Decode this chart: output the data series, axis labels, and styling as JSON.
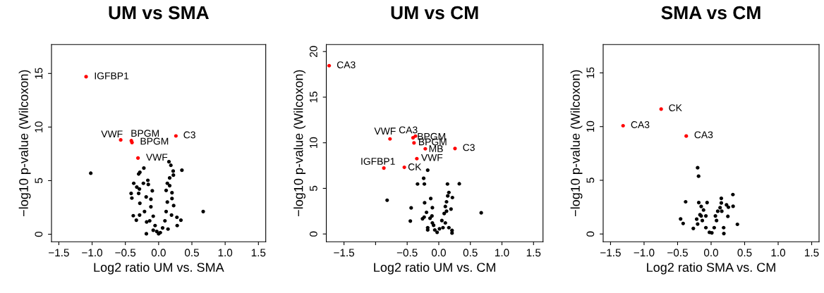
{
  "chart_data": [
    {
      "type": "scatter",
      "title": "UM vs SMA",
      "xlabel": "Log2 ratio UM vs. SMA",
      "ylabel": "−log10 p-value (Wilcoxon)",
      "xlim": [
        -1.61,
        1.61
      ],
      "ylim": [
        -0.7,
        17.7
      ],
      "xticks": [
        {
          "value": -1.5,
          "label": "−1.5"
        },
        {
          "value": -1.0,
          "label": "−1.0"
        },
        {
          "value": -0.5,
          "label": "−0.5"
        },
        {
          "value": 0.0,
          "label": "0.0"
        },
        {
          "value": 0.5,
          "label": "0.5"
        },
        {
          "value": 1.0,
          "label": "1.0"
        },
        {
          "value": 1.5,
          "label": "1.5"
        }
      ],
      "yticks": [
        0,
        5,
        10,
        15
      ],
      "marker": "circle",
      "grid": false,
      "legend": false,
      "series": [
        {
          "color": "#000000",
          "x": [
            -1.02,
            0.67,
            0.35,
            -0.222,
            -0.282,
            -0.3,
            -0.162,
            -0.374,
            -0.229,
            -0.155,
            -0.328,
            -0.289,
            -0.413,
            -0.402,
            -0.095,
            -0.3,
            -0.187,
            -0.282,
            -0.116,
            -0.212,
            -0.381,
            -0.286,
            -0.335,
            -0.18,
            -0.184,
            -0.116,
            -0.081,
            -0.053,
            -0.028,
            0.0,
            0.025,
            0.06,
            0.095,
            0.113,
            0.131,
            0.113,
            0.131,
            0.166,
            0.155,
            0.184,
            0.219,
            0.222,
            0.166,
            0.201,
            0.201,
            0.226,
            0.194,
            0.275,
            0.335,
            0.279,
            0.141,
            -0.081,
            -0.134
          ],
          "values": [
            5.69,
            2.12,
            5.97,
            6.17,
            5.78,
            5.62,
            5.03,
            4.75,
            4.75,
            4.64,
            4.4,
            4.22,
            3.81,
            3.37,
            4.05,
            3.81,
            3.48,
            2.89,
            3.26,
            2.12,
            1.73,
            1.79,
            1.31,
            1.14,
            0.04,
            2.56,
            1.68,
            0.81,
            0.26,
            0.04,
            0.15,
            0.59,
            1.25,
            2.12,
            3.0,
            4.09,
            4.75,
            4.53,
            6.76,
            6.43,
            5.89,
            5.51,
            5.25,
            3.87,
            3.33,
            2.67,
            1.79,
            1.58,
            1.31,
            0.81,
            0.48,
            0.37,
            1.25
          ]
        },
        {
          "color": "#ff0000",
          "x": [
            -1.09,
            -0.57,
            -0.41,
            -0.4,
            0.26,
            -0.31
          ],
          "values": [
            14.7,
            8.8,
            8.73,
            8.56,
            9.17,
            7.11
          ]
        }
      ],
      "annotations": [
        {
          "text": "IGFBP1",
          "x": -1.09,
          "y": 14.7
        },
        {
          "text": "VWF",
          "x": -0.57,
          "y": 8.8
        },
        {
          "text": "BPGM",
          "x": -0.41,
          "y": 8.73
        },
        {
          "text": "BPGM",
          "x": -0.4,
          "y": 8.56
        },
        {
          "text": "C3",
          "x": 0.26,
          "y": 9.17
        },
        {
          "text": "VWF",
          "x": -0.31,
          "y": 7.11
        }
      ]
    },
    {
      "type": "scatter",
      "title": "UM vs CM",
      "xlabel": "Log2 ratio UM vs. CM",
      "ylabel": "−log10 p-value (Wilcoxon)",
      "xlim": [
        -1.78,
        1.65
      ],
      "ylim": [
        -0.85,
        20.77
      ],
      "xticks": [
        {
          "value": -1.5,
          "label": "−1.5"
        },
        {
          "value": -1.0,
          "label": null
        },
        {
          "value": -0.5,
          "label": "−0.5"
        },
        {
          "value": 0.0,
          "label": "0.0"
        },
        {
          "value": 0.5,
          "label": "0.5"
        },
        {
          "value": 1.0,
          "label": "1.0"
        },
        {
          "value": 1.5,
          "label": "1.5"
        }
      ],
      "yticks": [
        0,
        5,
        10,
        15,
        20
      ],
      "marker": "circle",
      "grid": false,
      "legend": false,
      "series": [
        {
          "color": "#000000",
          "x": [
            -0.175,
            -0.239,
            -0.336,
            -0.228,
            0.138,
            0.325,
            -0.817,
            0.672,
            -0.437,
            -0.127,
            -0.224,
            0.194,
            -0.45,
            0.21,
            0.21,
            -0.257,
            -0.175,
            0.16,
            0.142,
            0.123,
            0.104,
            0.216,
            0.086,
            0.049,
            0.011,
            -0.026,
            -0.063,
            -0.101,
            -0.108,
            -0.101,
            -0.138,
            -0.194,
            -0.231,
            -0.175,
            -0.082,
            0.104,
            0.16,
            0.067,
            0.123
          ],
          "values": [
            7.0,
            6.1,
            5.48,
            5.48,
            5.48,
            5.5,
            3.7,
            2.32,
            2.86,
            3.89,
            3.42,
            2.73,
            1.42,
            0.39,
            0.1,
            1.67,
            0.44,
            4.55,
            4.17,
            3.53,
            3.01,
            3.99,
            2.24,
            1.47,
            0.57,
            0.18,
            0.44,
            1.21,
            1.98,
            2.88,
            1.72,
            2.37,
            1.85,
            0.69,
            0.95,
            1.21,
            0.69,
            0.69,
            2.5
          ]
        },
        {
          "color": "#ff0000",
          "x": [
            -1.735,
            -0.772,
            -0.407,
            -0.369,
            -0.392,
            -0.213,
            0.257,
            -0.347,
            -0.869,
            -0.545
          ],
          "values": [
            18.45,
            10.42,
            10.55,
            10.73,
            9.98,
            9.34,
            9.37,
            8.26,
            7.23,
            7.31
          ]
        }
      ],
      "annotations": [
        {
          "text": "CA3",
          "x": -1.735,
          "y": 18.45
        },
        {
          "text": "VWF",
          "x": -0.772,
          "y": 10.42
        },
        {
          "text": "CA3",
          "x": -0.407,
          "y": 10.55
        },
        {
          "text": "BPGM",
          "x": -0.369,
          "y": 10.73
        },
        {
          "text": "BPGM",
          "x": -0.392,
          "y": 9.98
        },
        {
          "text": "MB",
          "x": -0.213,
          "y": 9.34
        },
        {
          "text": "C3",
          "x": 0.257,
          "y": 9.37
        },
        {
          "text": "VWF",
          "x": -0.347,
          "y": 8.26
        },
        {
          "text": "IGFBP1",
          "x": -0.869,
          "y": 7.23
        },
        {
          "text": "CK",
          "x": -0.545,
          "y": 7.31
        }
      ]
    },
    {
      "type": "scatter",
      "title": "SMA vs CM",
      "xlabel": "Log2 ratio SMA vs. CM",
      "ylabel": "−log10 p-value (Wilcoxon)",
      "xlim": [
        -1.61,
        1.61
      ],
      "ylim": [
        -0.72,
        17.64
      ],
      "xticks": [
        {
          "value": -1.5,
          "label": "−1.5"
        },
        {
          "value": -1.0,
          "label": "−1.0"
        },
        {
          "value": -0.5,
          "label": "−0.5"
        },
        {
          "value": 0.0,
          "label": "0.0"
        },
        {
          "value": 0.5,
          "label": "0.5"
        },
        {
          "value": 1.0,
          "label": "1.0"
        },
        {
          "value": 1.5,
          "label": "1.5"
        }
      ],
      "yticks": [
        0,
        5,
        10,
        15
      ],
      "marker": "circle",
      "grid": false,
      "legend": false,
      "series": [
        {
          "color": "#000000",
          "x": [
            -0.201,
            -0.187,
            -0.38,
            0.325,
            0.328,
            0.152,
            0.392,
            -0.455,
            -0.417,
            -0.265,
            0.19,
            -0.215,
            -0.184,
            -0.06,
            0.23,
            0.258,
            0.25,
            -0.148,
            -0.113,
            -0.166,
            -0.131,
            -0.078,
            -0.025,
            0.011,
            0.046,
            0.081,
            0.099,
            0.134,
            0.064,
            0.152,
            0.159,
            0.187,
            -0.078,
            -0.201,
            -0.148
          ],
          "values": [
            6.17,
            5.38,
            3.0,
            3.67,
            2.58,
            3.32,
            0.9,
            1.4,
            0.98,
            0.52,
            0.04,
            1.38,
            2.93,
            2.93,
            2.71,
            2.49,
            1.64,
            2.56,
            2.23,
            1.79,
            1.25,
            0.59,
            0.15,
            0.11,
            0.59,
            1.25,
            2.12,
            2.45,
            1.68,
            2.89,
            2.12,
            0.59,
            1.68,
            0.92,
            1.68
          ]
        },
        {
          "color": "#ff0000",
          "x": [
            -0.745,
            -1.313,
            -0.371
          ],
          "values": [
            11.63,
            10.08,
            9.12
          ]
        }
      ],
      "annotations": [
        {
          "text": "CK",
          "x": -0.745,
          "y": 11.63
        },
        {
          "text": "CA3",
          "x": -1.313,
          "y": 10.08
        },
        {
          "text": "CA3",
          "x": -0.371,
          "y": 9.12
        }
      ]
    }
  ]
}
